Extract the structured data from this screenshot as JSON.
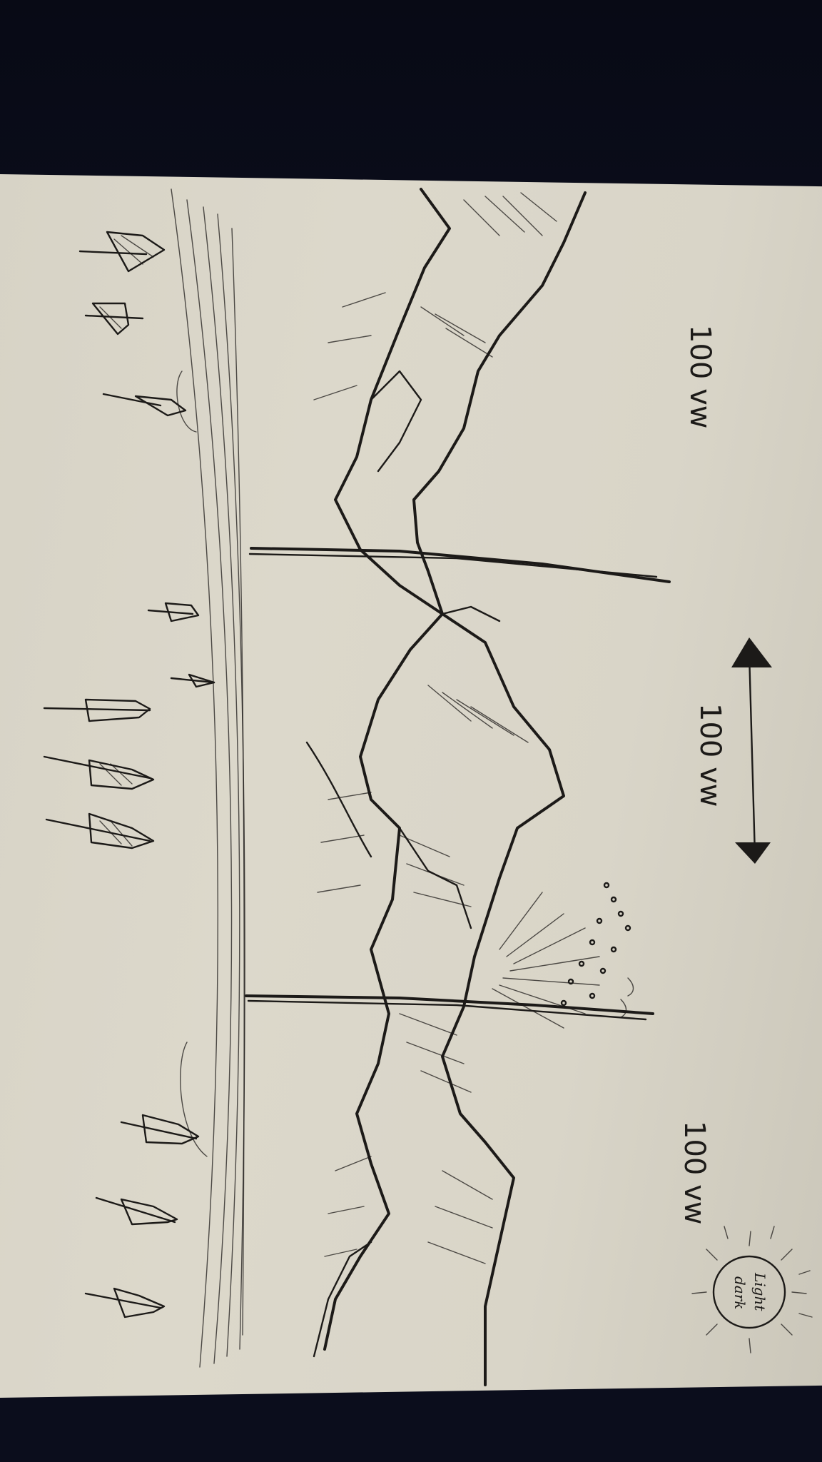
{
  "sketch": {
    "width_label_top": "100 vw",
    "width_label_middle": "100 vw",
    "width_label_bottom": "100 vw",
    "toggle_label_line1": "Light",
    "toggle_label_line2": "dark"
  },
  "colors": {
    "paper": "#d9d5c8",
    "ink": "#1c1a18",
    "background": "#0b0d1c"
  },
  "icons": [
    "rocket-icon",
    "double-arrow-icon",
    "sun-icon",
    "firework-burst-icon"
  ]
}
